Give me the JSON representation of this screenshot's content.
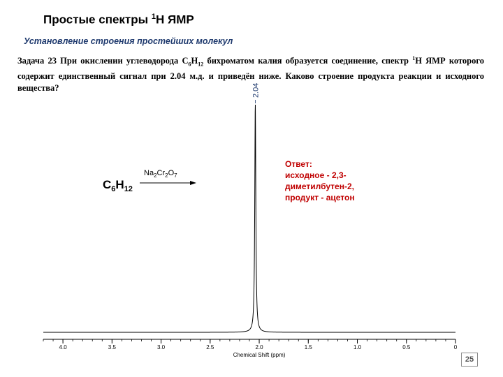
{
  "slide": {
    "title": "Простые спектры",
    "title_sup": "1",
    "title_tail": "Н ЯМР",
    "subtitle": "Установление строения простейших молекул",
    "page_number": "25"
  },
  "task": {
    "lead": "Задача 23",
    "t1": " При окислении углеводорода С",
    "sub1": "6",
    "t2": "Н",
    "sub2": "12",
    "t3": " бихроматом калия образуется соединение, спектр ",
    "sup1": "1",
    "t4": "Н ЯМР которого содержит единственный сигнал при 2.04 м.д. и приведён ниже. Каково строение продукта реакции и исходного вещества?"
  },
  "reaction": {
    "reactant_c": "C",
    "reactant_c_sub": "6",
    "reactant_h": "H",
    "reactant_h_sub": "12",
    "reagent_na": "Na",
    "reagent_na_sub": "2",
    "reagent_cr": "Cr",
    "reagent_cr_sub": "2",
    "reagent_o": "O",
    "reagent_o_sub": "7"
  },
  "answer": {
    "line1": "Ответ:",
    "line2": "исходное  -  2,3-",
    "line3": "диметилбутен-2,",
    "line4": "продукт - ацетон"
  },
  "chart_data": {
    "type": "line",
    "xlabel": "Chemical Shift (ppm)",
    "xlim": [
      4.2,
      0.0
    ],
    "x_reversed": true,
    "tick_labels": [
      "4.0",
      "3.5",
      "3.0",
      "2.5",
      "2.0",
      "1.5",
      "1.0",
      "0.5",
      "0"
    ],
    "tick_values": [
      4.0,
      3.5,
      3.0,
      2.5,
      2.0,
      1.5,
      1.0,
      0.5,
      0.0
    ],
    "peaks": [
      {
        "x": 2.04,
        "label": "2.04",
        "height": 1.0
      }
    ],
    "line_color": "#000000",
    "label_color": "#1f3a6e"
  }
}
